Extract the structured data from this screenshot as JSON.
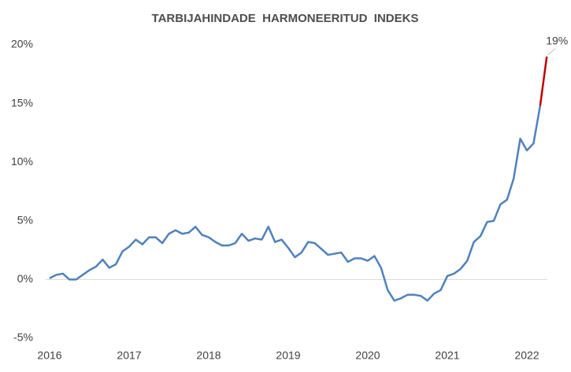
{
  "chart_data": {
    "type": "line",
    "title": "TARBIJAHINDADE  HARMONEERITUD  INDEKS",
    "categories": [
      "2016",
      null,
      null,
      null,
      null,
      null,
      null,
      null,
      null,
      null,
      null,
      null,
      "2017",
      null,
      null,
      null,
      null,
      null,
      null,
      null,
      null,
      null,
      null,
      null,
      "2018",
      null,
      null,
      null,
      null,
      null,
      null,
      null,
      null,
      null,
      null,
      null,
      "2019",
      null,
      null,
      null,
      null,
      null,
      null,
      null,
      null,
      null,
      null,
      null,
      "2020",
      null,
      null,
      null,
      null,
      null,
      null,
      null,
      null,
      null,
      null,
      null,
      "2021",
      null,
      null,
      null,
      null,
      null,
      null,
      null,
      null,
      null,
      null,
      null,
      "2022",
      null,
      null,
      null
    ],
    "series": [
      {
        "color": "#4f81bd",
        "values": [
          0.1,
          0.4,
          0.5,
          0.0,
          0.0,
          0.4,
          0.8,
          1.1,
          1.7,
          1.0,
          1.3,
          2.4,
          2.8,
          3.4,
          3.0,
          3.6,
          3.6,
          3.1,
          3.9,
          4.2,
          3.9,
          4.0,
          4.5,
          3.8,
          3.6,
          3.2,
          2.9,
          2.9,
          3.1,
          3.9,
          3.3,
          3.5,
          3.4,
          4.5,
          3.2,
          3.4,
          2.7,
          1.9,
          2.3,
          3.2,
          3.1,
          2.6,
          2.1,
          2.2,
          2.3,
          1.5,
          1.8,
          1.8,
          1.6,
          2.0,
          1.0,
          -0.9,
          -1.8,
          -1.6,
          -1.3,
          -1.3,
          -1.4,
          -1.8,
          -1.2,
          -0.9,
          0.3,
          0.5,
          0.9,
          1.6,
          3.2,
          3.7,
          4.9,
          5.0,
          6.4,
          6.8,
          8.6,
          12.0,
          11.0,
          11.6,
          14.8,
          null
        ]
      },
      {
        "color": "#c00000",
        "values": [
          null,
          null,
          null,
          null,
          null,
          null,
          null,
          null,
          null,
          null,
          null,
          null,
          null,
          null,
          null,
          null,
          null,
          null,
          null,
          null,
          null,
          null,
          null,
          null,
          null,
          null,
          null,
          null,
          null,
          null,
          null,
          null,
          null,
          null,
          null,
          null,
          null,
          null,
          null,
          null,
          null,
          null,
          null,
          null,
          null,
          null,
          null,
          null,
          null,
          null,
          null,
          null,
          null,
          null,
          null,
          null,
          null,
          null,
          null,
          null,
          null,
          null,
          null,
          null,
          null,
          null,
          null,
          null,
          null,
          null,
          null,
          null,
          null,
          null,
          14.8,
          19.0
        ],
        "value_labels": [
          null,
          null,
          null,
          null,
          null,
          null,
          null,
          null,
          null,
          null,
          null,
          null,
          null,
          null,
          null,
          null,
          null,
          null,
          null,
          null,
          null,
          null,
          null,
          null,
          null,
          null,
          null,
          null,
          null,
          null,
          null,
          null,
          null,
          null,
          null,
          null,
          null,
          null,
          null,
          null,
          null,
          null,
          null,
          null,
          null,
          null,
          null,
          null,
          null,
          null,
          null,
          null,
          null,
          null,
          null,
          null,
          null,
          null,
          null,
          null,
          null,
          null,
          null,
          null,
          null,
          null,
          null,
          null,
          null,
          null,
          null,
          null,
          null,
          null,
          null,
          "19%"
        ]
      }
    ],
    "ylim": [
      -5,
      20
    ],
    "yticks": [
      {
        "value": -5,
        "label": "-5%"
      },
      {
        "value": 0,
        "label": "0%"
      },
      {
        "value": 5,
        "label": "5%"
      },
      {
        "value": 10,
        "label": "10%"
      },
      {
        "value": 15,
        "label": "15%"
      },
      {
        "value": 20,
        "label": "20%"
      }
    ],
    "zero_line": true
  }
}
